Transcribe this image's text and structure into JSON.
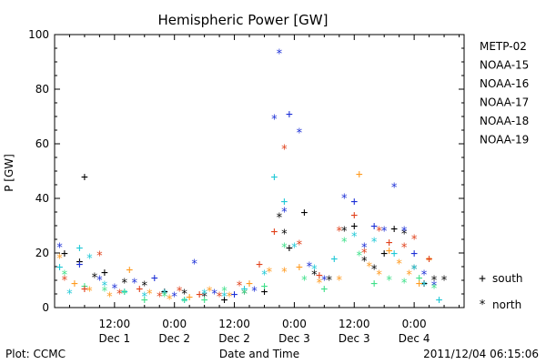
{
  "chart_data": {
    "type": "scatter",
    "title": "Hemispheric Power [GW]",
    "ylabel": "P [GW]",
    "xlabel": "Date and Time",
    "ylim": [
      0,
      100
    ],
    "yticks": [
      0,
      20,
      40,
      60,
      80,
      100
    ],
    "xlim_hours": [
      0,
      82
    ],
    "x_ticks": [
      {
        "hour": 12,
        "time": "12:00",
        "date": "Dec 1"
      },
      {
        "hour": 24,
        "time": "0:00",
        "date": "Dec 2"
      },
      {
        "hour": 36,
        "time": "12:00",
        "date": "Dec 2"
      },
      {
        "hour": 48,
        "time": "0:00",
        "date": "Dec 3"
      },
      {
        "hour": 60,
        "time": "12:00",
        "date": "Dec 3"
      },
      {
        "hour": 72,
        "time": "0:00",
        "date": "Dec 4"
      }
    ],
    "series": [
      {
        "name": "METP-02",
        "color": "#000000",
        "points": [
          [
            2,
            20,
            "south"
          ],
          [
            5,
            17,
            "south"
          ],
          [
            6,
            48,
            "south"
          ],
          [
            8,
            11,
            "north"
          ],
          [
            10,
            13,
            "south"
          ],
          [
            14,
            9,
            "north"
          ],
          [
            18,
            8,
            "north"
          ],
          [
            22,
            6,
            "south"
          ],
          [
            26,
            5,
            "north"
          ],
          [
            30,
            4,
            "north"
          ],
          [
            34,
            3,
            "south"
          ],
          [
            38,
            5,
            "north"
          ],
          [
            42,
            6,
            "south"
          ],
          [
            45,
            33,
            "north"
          ],
          [
            46,
            27,
            "north"
          ],
          [
            47,
            22,
            "south"
          ],
          [
            50,
            35,
            "south"
          ],
          [
            52,
            12,
            "north"
          ],
          [
            55,
            10,
            "north"
          ],
          [
            58,
            28,
            "north"
          ],
          [
            60,
            30,
            "south"
          ],
          [
            62,
            17,
            "north"
          ],
          [
            64,
            14,
            "north"
          ],
          [
            66,
            20,
            "south"
          ],
          [
            68,
            29,
            "south"
          ],
          [
            70,
            27,
            "north"
          ],
          [
            72,
            14,
            "north"
          ],
          [
            74,
            9,
            "south"
          ],
          [
            76,
            10,
            "north"
          ],
          [
            78,
            10,
            "north"
          ]
        ]
      },
      {
        "name": "NOAA-15",
        "color": "#1c2fd6",
        "points": [
          [
            1,
            22,
            "north"
          ],
          [
            5,
            16,
            "south"
          ],
          [
            9,
            10,
            "north"
          ],
          [
            12,
            7,
            "north"
          ],
          [
            16,
            9,
            "north"
          ],
          [
            20,
            11,
            "south"
          ],
          [
            24,
            4,
            "north"
          ],
          [
            28,
            16,
            "north"
          ],
          [
            32,
            5,
            "north"
          ],
          [
            36,
            5,
            "south"
          ],
          [
            40,
            6,
            "north"
          ],
          [
            44,
            69,
            "north"
          ],
          [
            45,
            93,
            "north"
          ],
          [
            46,
            35,
            "north"
          ],
          [
            47,
            71,
            "south"
          ],
          [
            49,
            64,
            "north"
          ],
          [
            51,
            15,
            "north"
          ],
          [
            54,
            10,
            "north"
          ],
          [
            58,
            40,
            "north"
          ],
          [
            60,
            39,
            "south"
          ],
          [
            62,
            22,
            "north"
          ],
          [
            64,
            30,
            "south"
          ],
          [
            66,
            28,
            "north"
          ],
          [
            68,
            44,
            "north"
          ],
          [
            70,
            28,
            "north"
          ],
          [
            72,
            20,
            "south"
          ],
          [
            74,
            12,
            "north"
          ],
          [
            76,
            8,
            "north"
          ]
        ]
      },
      {
        "name": "NOAA-16",
        "color": "#1fc8d6",
        "points": [
          [
            1,
            15,
            "south"
          ],
          [
            3,
            5,
            "north"
          ],
          [
            5,
            22,
            "south"
          ],
          [
            7,
            18,
            "north"
          ],
          [
            10,
            8,
            "north"
          ],
          [
            14,
            6,
            "south"
          ],
          [
            18,
            4,
            "north"
          ],
          [
            22,
            5,
            "north"
          ],
          [
            26,
            3,
            "south"
          ],
          [
            30,
            5,
            "north"
          ],
          [
            34,
            4,
            "north"
          ],
          [
            38,
            7,
            "south"
          ],
          [
            42,
            12,
            "north"
          ],
          [
            44,
            48,
            "south"
          ],
          [
            46,
            39,
            "south"
          ],
          [
            48,
            22,
            "north"
          ],
          [
            52,
            14,
            "north"
          ],
          [
            56,
            18,
            "south"
          ],
          [
            60,
            26,
            "north"
          ],
          [
            64,
            24,
            "north"
          ],
          [
            68,
            20,
            "south"
          ],
          [
            72,
            14,
            "north"
          ],
          [
            74,
            8,
            "north"
          ],
          [
            77,
            3,
            "south"
          ]
        ]
      },
      {
        "name": "NOAA-17",
        "color": "#3fe08a",
        "points": [
          [
            2,
            12,
            "north"
          ],
          [
            6,
            8,
            "south"
          ],
          [
            10,
            6,
            "north"
          ],
          [
            14,
            5,
            "north"
          ],
          [
            18,
            3,
            "south"
          ],
          [
            22,
            4,
            "north"
          ],
          [
            26,
            2,
            "north"
          ],
          [
            30,
            3,
            "south"
          ],
          [
            34,
            6,
            "north"
          ],
          [
            38,
            5,
            "north"
          ],
          [
            42,
            8,
            "south"
          ],
          [
            46,
            22,
            "north"
          ],
          [
            50,
            10,
            "north"
          ],
          [
            54,
            7,
            "south"
          ],
          [
            58,
            24,
            "north"
          ],
          [
            61,
            19,
            "north"
          ],
          [
            64,
            9,
            "south"
          ],
          [
            67,
            10,
            "north"
          ],
          [
            70,
            9,
            "north"
          ],
          [
            73,
            11,
            "south"
          ],
          [
            76,
            7,
            "north"
          ]
        ]
      },
      {
        "name": "NOAA-18",
        "color": "#ff9a1f",
        "points": [
          [
            1,
            18,
            "north"
          ],
          [
            4,
            9,
            "south"
          ],
          [
            7,
            6,
            "north"
          ],
          [
            11,
            4,
            "north"
          ],
          [
            15,
            14,
            "south"
          ],
          [
            19,
            5,
            "north"
          ],
          [
            23,
            3,
            "north"
          ],
          [
            27,
            4,
            "south"
          ],
          [
            31,
            6,
            "north"
          ],
          [
            35,
            4,
            "north"
          ],
          [
            39,
            9,
            "south"
          ],
          [
            43,
            13,
            "north"
          ],
          [
            46,
            13,
            "north"
          ],
          [
            49,
            15,
            "south"
          ],
          [
            53,
            9,
            "north"
          ],
          [
            57,
            10,
            "north"
          ],
          [
            61,
            49,
            "south"
          ],
          [
            63,
            15,
            "north"
          ],
          [
            65,
            12,
            "north"
          ],
          [
            67,
            21,
            "south"
          ],
          [
            69,
            16,
            "north"
          ],
          [
            71,
            12,
            "north"
          ],
          [
            73,
            9,
            "south"
          ],
          [
            75,
            17,
            "north"
          ]
        ]
      },
      {
        "name": "NOAA-19",
        "color": "#e0401a",
        "points": [
          [
            2,
            10,
            "north"
          ],
          [
            6,
            7,
            "south"
          ],
          [
            9,
            19,
            "north"
          ],
          [
            13,
            5,
            "north"
          ],
          [
            17,
            7,
            "south"
          ],
          [
            21,
            4,
            "north"
          ],
          [
            25,
            6,
            "north"
          ],
          [
            29,
            5,
            "south"
          ],
          [
            33,
            4,
            "north"
          ],
          [
            37,
            8,
            "north"
          ],
          [
            41,
            16,
            "south"
          ],
          [
            44,
            28,
            "south"
          ],
          [
            46,
            58,
            "north"
          ],
          [
            49,
            23,
            "north"
          ],
          [
            53,
            12,
            "south"
          ],
          [
            57,
            28,
            "north"
          ],
          [
            60,
            34,
            "south"
          ],
          [
            62,
            20,
            "north"
          ],
          [
            65,
            28,
            "north"
          ],
          [
            67,
            24,
            "south"
          ],
          [
            70,
            22,
            "north"
          ],
          [
            72,
            25,
            "north"
          ],
          [
            75,
            18,
            "south"
          ]
        ]
      }
    ],
    "marker_legend": [
      {
        "symbol": "+",
        "label": "south"
      },
      {
        "symbol": "*",
        "label": "north"
      }
    ]
  },
  "footer": {
    "left": "Plot: CCMC",
    "right": "2011/12/04 06:15:06"
  }
}
